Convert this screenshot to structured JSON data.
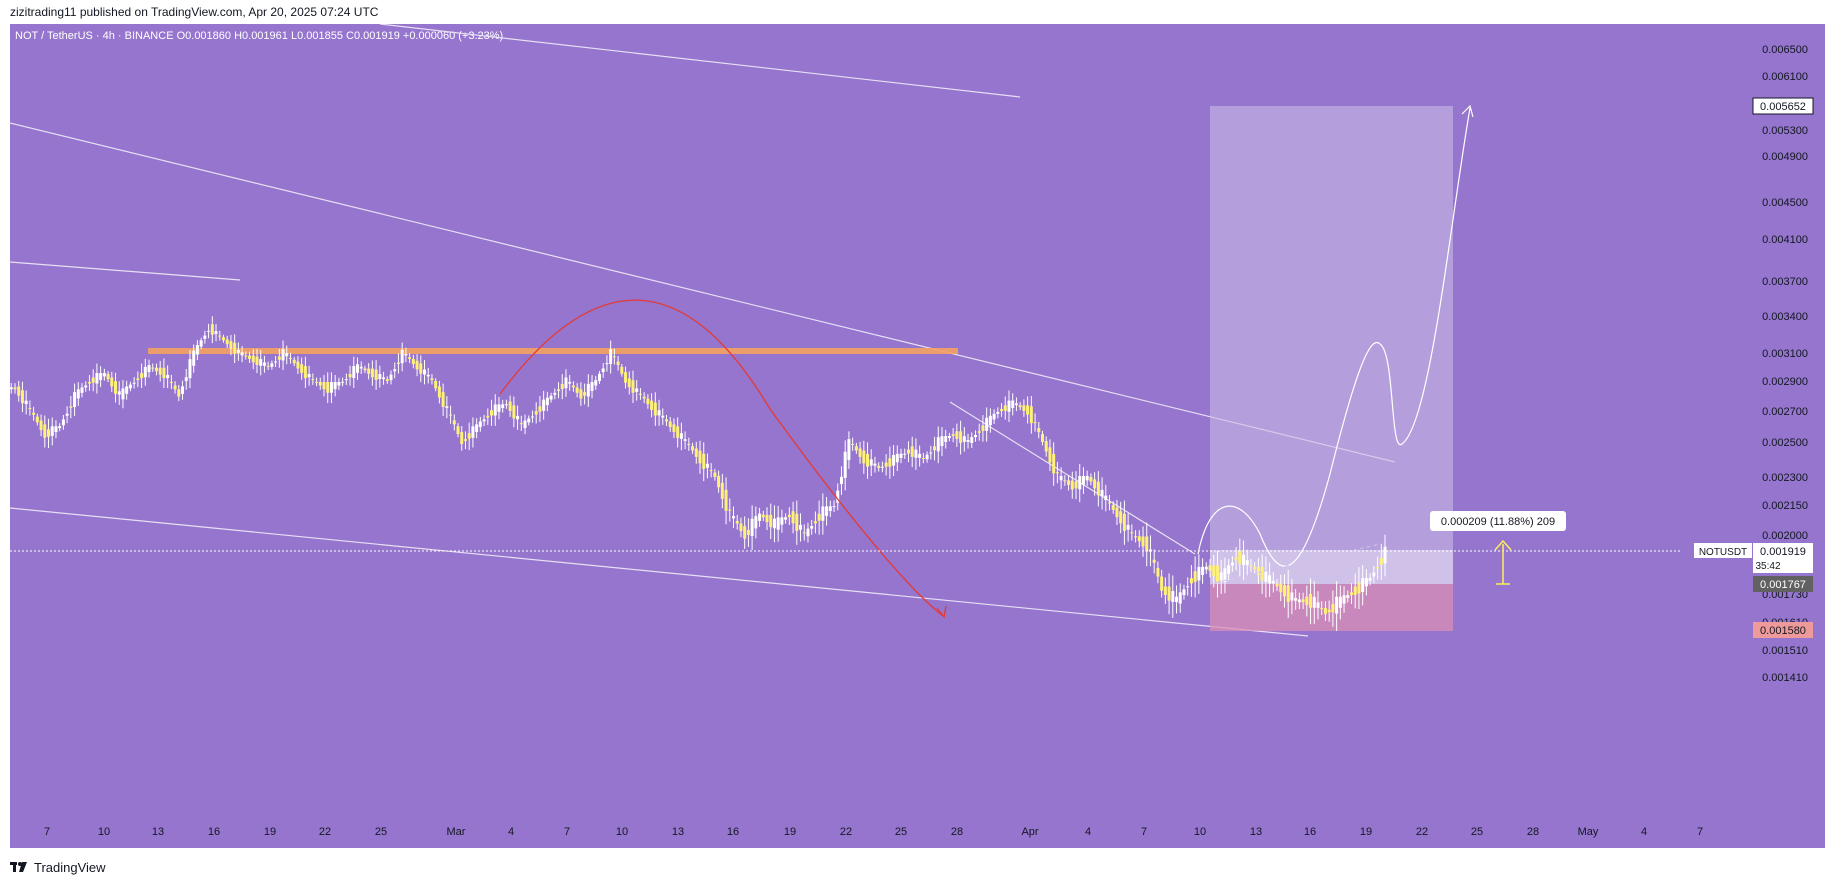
{
  "header": {
    "published": "zizitrading11 published on TradingView.com, Apr 20, 2025 07:24 UTC"
  },
  "legend": {
    "text": "NOT / TetherUS · 4h · BINANCE  O0.001860  H0.001961  L0.001855  C0.001919  +0.000060 (+3.23%)"
  },
  "footer": {
    "brand": "TradingView"
  },
  "colors": {
    "background": "#9575cd",
    "candle": "#fff176",
    "wick": "#ffffff",
    "zone": "#f4a261",
    "target_box": "#c9b9e6",
    "stop_box": "#d98fb4",
    "red_arc": "#e53935",
    "arrow": "#ffee58"
  },
  "chart_data": {
    "type": "candlestick",
    "symbol": "NOTUSDT",
    "timeframe": "4h",
    "exchange": "BINANCE",
    "x_ticks": [
      "7",
      "10",
      "13",
      "16",
      "19",
      "22",
      "25",
      "Mar",
      "4",
      "7",
      "10",
      "13",
      "16",
      "19",
      "22",
      "25",
      "28",
      "Apr",
      "4",
      "7",
      "10",
      "13",
      "16",
      "19",
      "22",
      "25",
      "28",
      "May",
      "4",
      "7"
    ],
    "y_ticks": [
      "0.006500",
      "0.006100",
      "0.005300",
      "0.004900",
      "0.004500",
      "0.004100",
      "0.003700",
      "0.003400",
      "0.003100",
      "0.002900",
      "0.002700",
      "0.002500",
      "0.002300",
      "0.002150",
      "0.002000",
      "0.001730",
      "0.001610",
      "0.001510",
      "0.001410"
    ],
    "price_close": [
      0.00285,
      0.0027,
      0.00255,
      0.0026,
      0.0028,
      0.0029,
      0.00295,
      0.0028,
      0.0029,
      0.003,
      0.00295,
      0.0028,
      0.0031,
      0.0033,
      0.0032,
      0.0031,
      0.00305,
      0.003,
      0.0031,
      0.003,
      0.0029,
      0.00285,
      0.0029,
      0.003,
      0.00295,
      0.0029,
      0.0031,
      0.003,
      0.0029,
      0.0027,
      0.0025,
      0.0026,
      0.0027,
      0.00275,
      0.0026,
      0.0027,
      0.0028,
      0.0029,
      0.0028,
      0.0029,
      0.0031,
      0.0029,
      0.0028,
      0.0027,
      0.0026,
      0.0025,
      0.0024,
      0.0023,
      0.0021,
      0.002,
      0.0021,
      0.00205,
      0.0021,
      0.002,
      0.0021,
      0.00215,
      0.0025,
      0.0024,
      0.00235,
      0.0024,
      0.00245,
      0.0024,
      0.0025,
      0.00255,
      0.0025,
      0.0026,
      0.0027,
      0.00275,
      0.0027,
      0.0025,
      0.0023,
      0.00225,
      0.0023,
      0.0022,
      0.0021,
      0.002,
      0.00195,
      0.00175,
      0.0017,
      0.0018,
      0.00185,
      0.0018,
      0.0019,
      0.00185,
      0.0018,
      0.00175,
      0.0017,
      0.0017,
      0.00165,
      0.0017,
      0.00175,
      0.0018,
      0.001919
    ],
    "price_labels": [
      {
        "label": "0.005652",
        "kind": "target"
      },
      {
        "label": "0.001919",
        "kind": "last",
        "symbol": "NOTUSDT",
        "countdown": "35:42"
      },
      {
        "label": "0.001767",
        "kind": "entry"
      },
      {
        "label": "0.001580",
        "kind": "stop"
      }
    ],
    "measure_label": "0.000209 (11.88%) 209",
    "grid": false
  }
}
